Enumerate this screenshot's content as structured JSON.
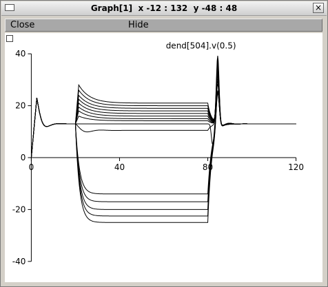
{
  "window": {
    "title": "Graph[1]  x -12 : 132  y -48 : 48",
    "close_glyph": "×"
  },
  "menu": {
    "close_label": "Close",
    "hide_label": "Hide"
  },
  "chart_data": {
    "type": "line",
    "title": "",
    "series_label": "dend[504].v(0.5)",
    "xlim": [
      -12,
      132
    ],
    "ylim": [
      -48,
      48
    ],
    "x_axis": {
      "from": 0,
      "to": 120,
      "ticks": [
        0,
        40,
        80,
        120
      ]
    },
    "y_axis": {
      "from": -40,
      "to": 40,
      "ticks": [
        -40,
        -20,
        0,
        20,
        40
      ]
    },
    "grid": false,
    "legend": "none",
    "stim_on": 20,
    "stim_off": 80,
    "peak": {
      "x": 84.5,
      "y": 38
    },
    "final_value": 13,
    "initial_value": 13,
    "initial_overshoot": {
      "x": 2.5,
      "y": 23
    },
    "traces_up": [
      {
        "peak": 28,
        "plateau": 21
      },
      {
        "peak": 26,
        "plateau": 20
      },
      {
        "peak": 24,
        "plateau": 19
      },
      {
        "peak": 22.5,
        "plateau": 18
      },
      {
        "peak": 21,
        "plateau": 17
      },
      {
        "peak": 19.5,
        "plateau": 16
      },
      {
        "peak": 18,
        "plateau": 15
      },
      {
        "peak": 16,
        "plateau": 14.2
      }
    ],
    "trace_damped": {
      "min": 4.5,
      "plateau": 10.5
    },
    "traces_down": [
      {
        "min": -14,
        "plateau": -14
      },
      {
        "min": -17.5,
        "plateau": -17
      },
      {
        "min": -20.5,
        "plateau": -20
      },
      {
        "min": -23,
        "plateau": -22.5
      },
      {
        "min": -25.5,
        "plateau": -25
      }
    ],
    "color": "#000000"
  }
}
